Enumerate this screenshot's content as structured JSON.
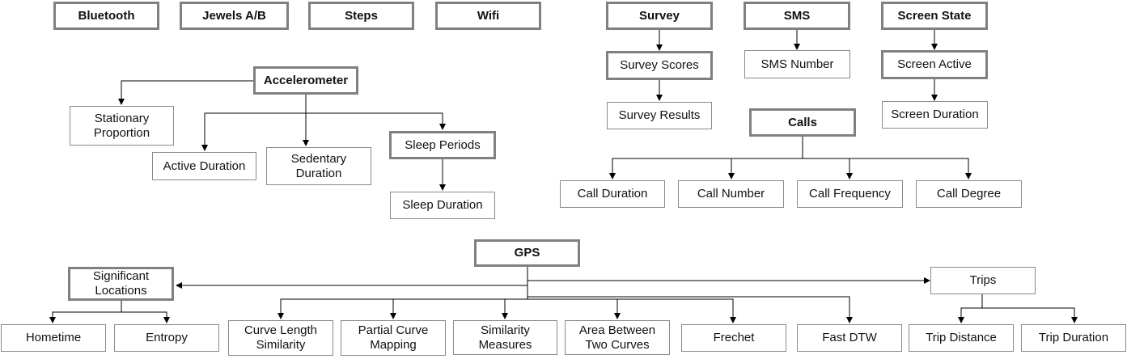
{
  "nodes": {
    "bluetooth": "Bluetooth",
    "jewels": "Jewels A/B",
    "steps": "Steps",
    "wifi": "Wifi",
    "survey": "Survey",
    "sms": "SMS",
    "screen_state": "Screen State",
    "survey_scores": "Survey Scores",
    "sms_number": "SMS Number",
    "screen_active": "Screen Active",
    "survey_results": "Survey Results",
    "screen_duration": "Screen Duration",
    "calls": "Calls",
    "call_duration": "Call Duration",
    "call_number": "Call Number",
    "call_frequency": "Call Frequency",
    "call_degree": "Call Degree",
    "accelerometer": "Accelerometer",
    "stationary_proportion": "Stationary\nProportion",
    "active_duration": "Active Duration",
    "sedentary_duration": "Sedentary\nDuration",
    "sleep_periods": "Sleep Periods",
    "sleep_duration": "Sleep Duration",
    "gps": "GPS",
    "significant_locations": "Significant\nLocations",
    "trips": "Trips",
    "hometime": "Hometime",
    "entropy": "Entropy",
    "curve_length_similarity": "Curve Length\nSimilarity",
    "partial_curve_mapping": "Partial Curve\nMapping",
    "similarity_measures": "Similarity\nMeasures",
    "area_between_two_curves": "Area Between\nTwo Curves",
    "frechet": "Frechet",
    "fast_dtw": "Fast DTW",
    "trip_distance": "Trip Distance",
    "trip_duration": "Trip Duration"
  }
}
